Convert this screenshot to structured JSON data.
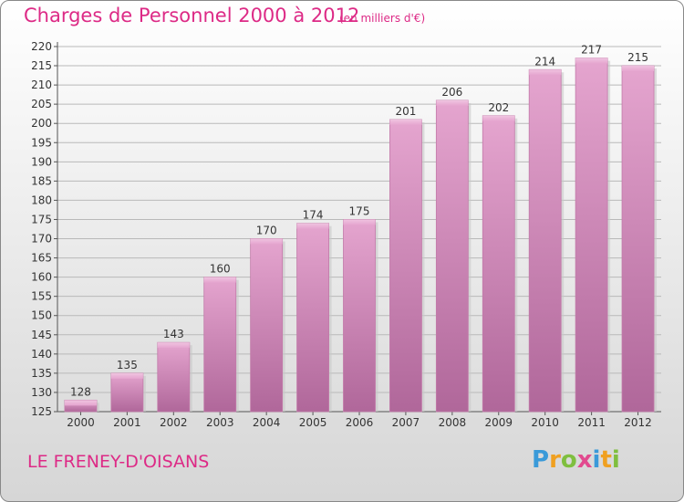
{
  "title": "Charges de Personnel 2000 à 2012",
  "subtitle": "(en milliers d'€)",
  "location": "LE FRENEY-D'OISANS",
  "logo": {
    "text": "Proxiti",
    "letters": [
      {
        "ch": "P",
        "color": "#3a9ad9"
      },
      {
        "ch": "r",
        "color": "#f0a020"
      },
      {
        "ch": "o",
        "color": "#7fbf3f"
      },
      {
        "ch": "x",
        "color": "#e24a8f"
      },
      {
        "ch": "i",
        "color": "#3a9ad9"
      },
      {
        "ch": "t",
        "color": "#f0a020"
      },
      {
        "ch": "i",
        "color": "#7fbf3f"
      }
    ]
  },
  "colors": {
    "accent": "#dd2a86",
    "bar": "#d98cbd",
    "bar_dark": "#b0679a"
  },
  "chart_data": {
    "type": "bar",
    "title": "Charges de Personnel 2000 à 2012",
    "subtitle": "(en milliers d'€)",
    "categories": [
      "2000",
      "2001",
      "2002",
      "2003",
      "2004",
      "2005",
      "2006",
      "2007",
      "2008",
      "2009",
      "2010",
      "2011",
      "2012"
    ],
    "values": [
      128,
      135,
      143,
      160,
      170,
      174,
      175,
      201,
      206,
      202,
      214,
      217,
      215
    ],
    "ylim": [
      125,
      220
    ],
    "yticks": [
      125,
      130,
      135,
      140,
      145,
      150,
      155,
      160,
      165,
      170,
      175,
      180,
      185,
      190,
      195,
      200,
      205,
      210,
      215,
      220
    ],
    "grid": true
  }
}
